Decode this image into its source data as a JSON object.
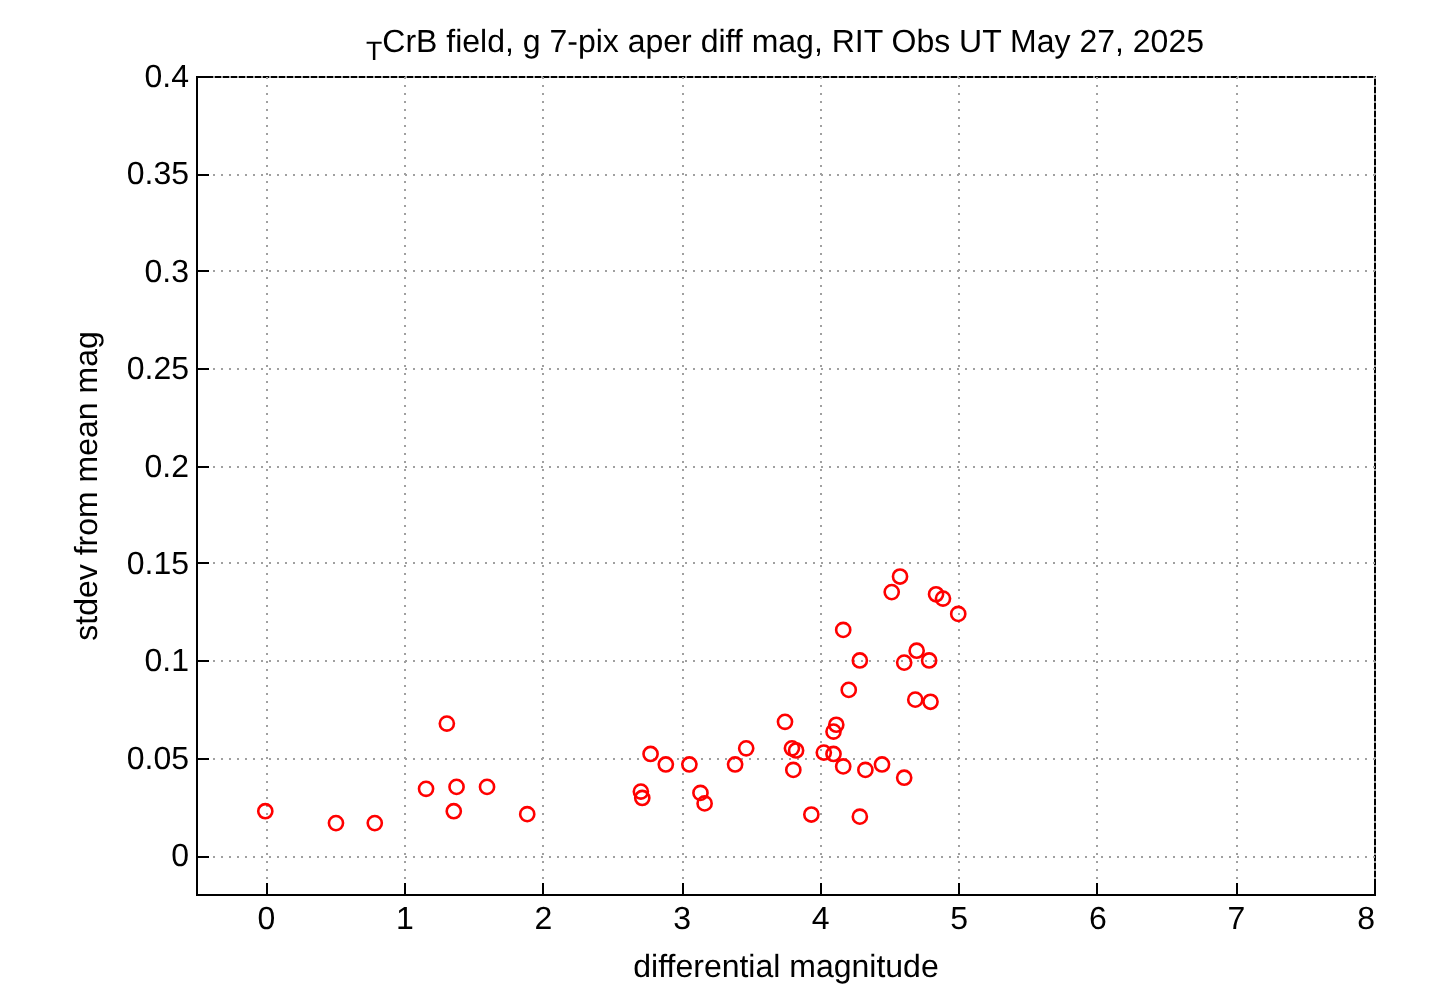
{
  "chart_data": {
    "type": "scatter",
    "title": "$_{T}$CrB field, g 7-pix aper diff mag,  RIT Obs UT May 27, 2025",
    "xlabel": "differential magnitude",
    "ylabel": "stdev from mean mag",
    "x": [
      0,
      0.51,
      0.79,
      1.16,
      1.31,
      1.36,
      1.38,
      1.6,
      1.89,
      2.71,
      2.72,
      2.78,
      2.89,
      3.06,
      3.14,
      3.17,
      3.39,
      3.47,
      3.75,
      3.8,
      3.83,
      3.81,
      3.94,
      4.03,
      4.1,
      4.1,
      4.12,
      4.17,
      4.17,
      4.21,
      4.29,
      4.29,
      4.33,
      4.45,
      4.52,
      4.58,
      4.61,
      4.61,
      4.69,
      4.7,
      4.79,
      4.8,
      4.84,
      4.89,
      5.0
    ],
    "series": [
      {
        "color": "#ff0000",
        "values": [
          0.0225,
          0.0164,
          0.0164,
          0.034,
          0.0675,
          0.0225,
          0.035,
          0.035,
          0.021,
          0.0326,
          0.0293,
          0.0519,
          0.0465,
          0.0465,
          0.0319,
          0.0265,
          0.0465,
          0.0548,
          0.0684,
          0.0548,
          0.0537,
          0.0437,
          0.0208,
          0.0526,
          0.0519,
          0.0634,
          0.0669,
          0.1156,
          0.0455,
          0.0848,
          0.0999,
          0.0197,
          0.0437,
          0.0465,
          0.135,
          0.143,
          0.0397,
          0.0988,
          0.0798,
          0.1049,
          0.0999,
          0.0787,
          0.1339,
          0.1317,
          0.1238
        ]
      }
    ],
    "xlim": [
      -0.5,
      8
    ],
    "xticks": [
      0,
      1,
      2,
      3,
      4,
      5,
      6,
      7,
      8
    ],
    "ylim": [
      -0.02,
      0.4
    ],
    "yticks": [
      0,
      0.05,
      0.1,
      0.15,
      0.2,
      0.25,
      0.3,
      0.35,
      0.4
    ],
    "grid": true,
    "marker": "circle",
    "legend": false
  }
}
